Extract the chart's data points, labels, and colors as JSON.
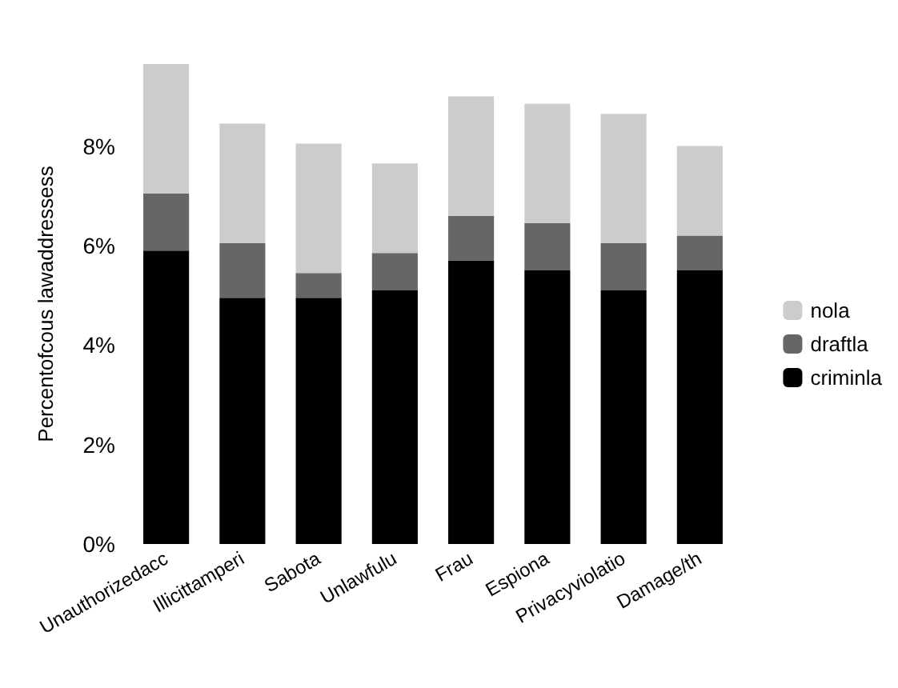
{
  "chart_data": {
    "type": "bar",
    "stacked": true,
    "ylabel": "Percentofcous lawaddressess",
    "categories": [
      "Unauthorizedacc",
      "Illicittamperi",
      "Sabota",
      "Unlawfulu",
      "Frau",
      "Espiona",
      "Privacyviolatio",
      "Damage/th"
    ],
    "series": [
      {
        "name": "criminla",
        "color": "#000000",
        "values": [
          5.9,
          4.95,
          4.95,
          5.1,
          5.7,
          5.5,
          5.1,
          5.5
        ]
      },
      {
        "name": "draftla",
        "color": "#666666",
        "values": [
          1.15,
          1.1,
          0.5,
          0.75,
          0.9,
          0.95,
          0.95,
          0.7
        ]
      },
      {
        "name": "nola",
        "color": "#cccccc",
        "values": [
          2.6,
          2.4,
          2.6,
          1.8,
          2.4,
          2.4,
          2.6,
          1.8
        ]
      }
    ],
    "yticks": [
      {
        "value": 0,
        "label": "0%"
      },
      {
        "value": 2,
        "label": "2%"
      },
      {
        "value": 4,
        "label": "4%"
      },
      {
        "value": 6,
        "label": "6%"
      },
      {
        "value": 8,
        "label": "8%"
      }
    ],
    "ylim": [
      0,
      9.65
    ],
    "grid": false,
    "legend": "right"
  }
}
